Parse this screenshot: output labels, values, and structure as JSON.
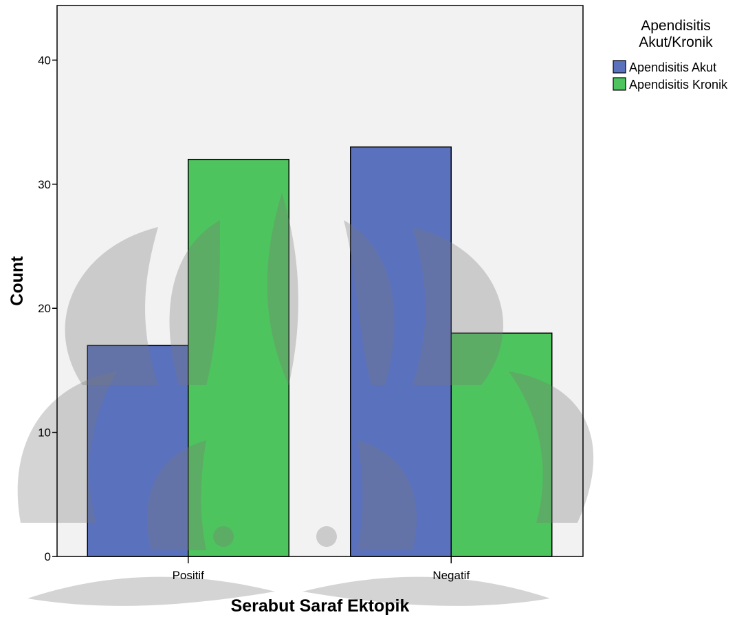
{
  "chart_data": {
    "type": "bar",
    "xlabel": "Serabut Saraf Ektopik",
    "ylabel": "Count",
    "categories": [
      "Positif",
      "Negatif"
    ],
    "series": [
      {
        "name": "Apendisitis Akut",
        "values": [
          17,
          33
        ],
        "color": "#5a71bd"
      },
      {
        "name": "Apendisitis Kronik",
        "values": [
          32,
          18
        ],
        "color": "#4ec45e"
      }
    ],
    "ylim": [
      0,
      44.4
    ],
    "yticks": [
      0,
      10,
      20,
      30,
      40
    ],
    "grid": false,
    "plot_background": "#f2f2f2",
    "legend": {
      "title_lines": [
        "Apendisitis",
        "Akut/Kronik"
      ],
      "placement": "right"
    }
  }
}
